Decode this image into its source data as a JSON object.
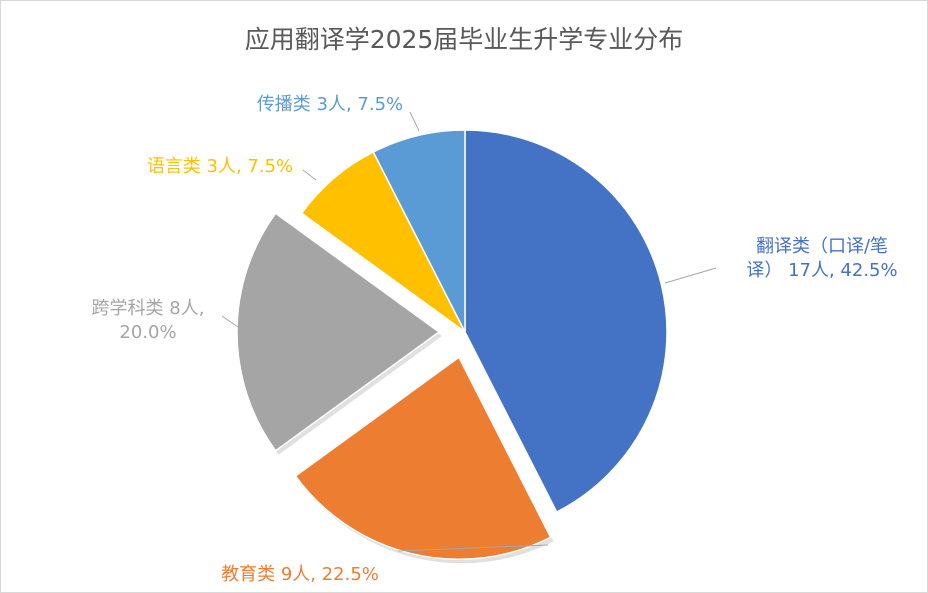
{
  "chart_data": {
    "type": "pie",
    "title": "应用翻译学2025届毕业生升学专业分布",
    "categories": [
      "翻译类（口译/笔译）",
      "教育类",
      "跨学科类",
      "语言类",
      "传播类"
    ],
    "values": [
      17,
      9,
      8,
      3,
      3
    ],
    "percentages": [
      42.5,
      22.5,
      20.0,
      7.5,
      7.5
    ],
    "colors": [
      "#4472C4",
      "#ED7D31",
      "#A5A5A5",
      "#FFC000",
      "#5B9BD5"
    ],
    "exploded": [
      false,
      true,
      true,
      false,
      false
    ],
    "labels": [
      {
        "lines": [
          "翻译类（口译/笔",
          "译） 17人, 42.5%"
        ],
        "color": "#4472C4"
      },
      {
        "lines": [
          "教育类 9人, 22.5%"
        ],
        "color": "#ED7D31"
      },
      {
        "lines": [
          "跨学科类 8人,",
          "20.0%"
        ],
        "color": "#A5A5A5"
      },
      {
        "lines": [
          "语言类 3人, 7.5%"
        ],
        "color": "#FFC000"
      },
      {
        "lines": [
          "传播类 3人, 7.5%"
        ],
        "color": "#5B9BD5"
      }
    ],
    "legend": "none"
  }
}
